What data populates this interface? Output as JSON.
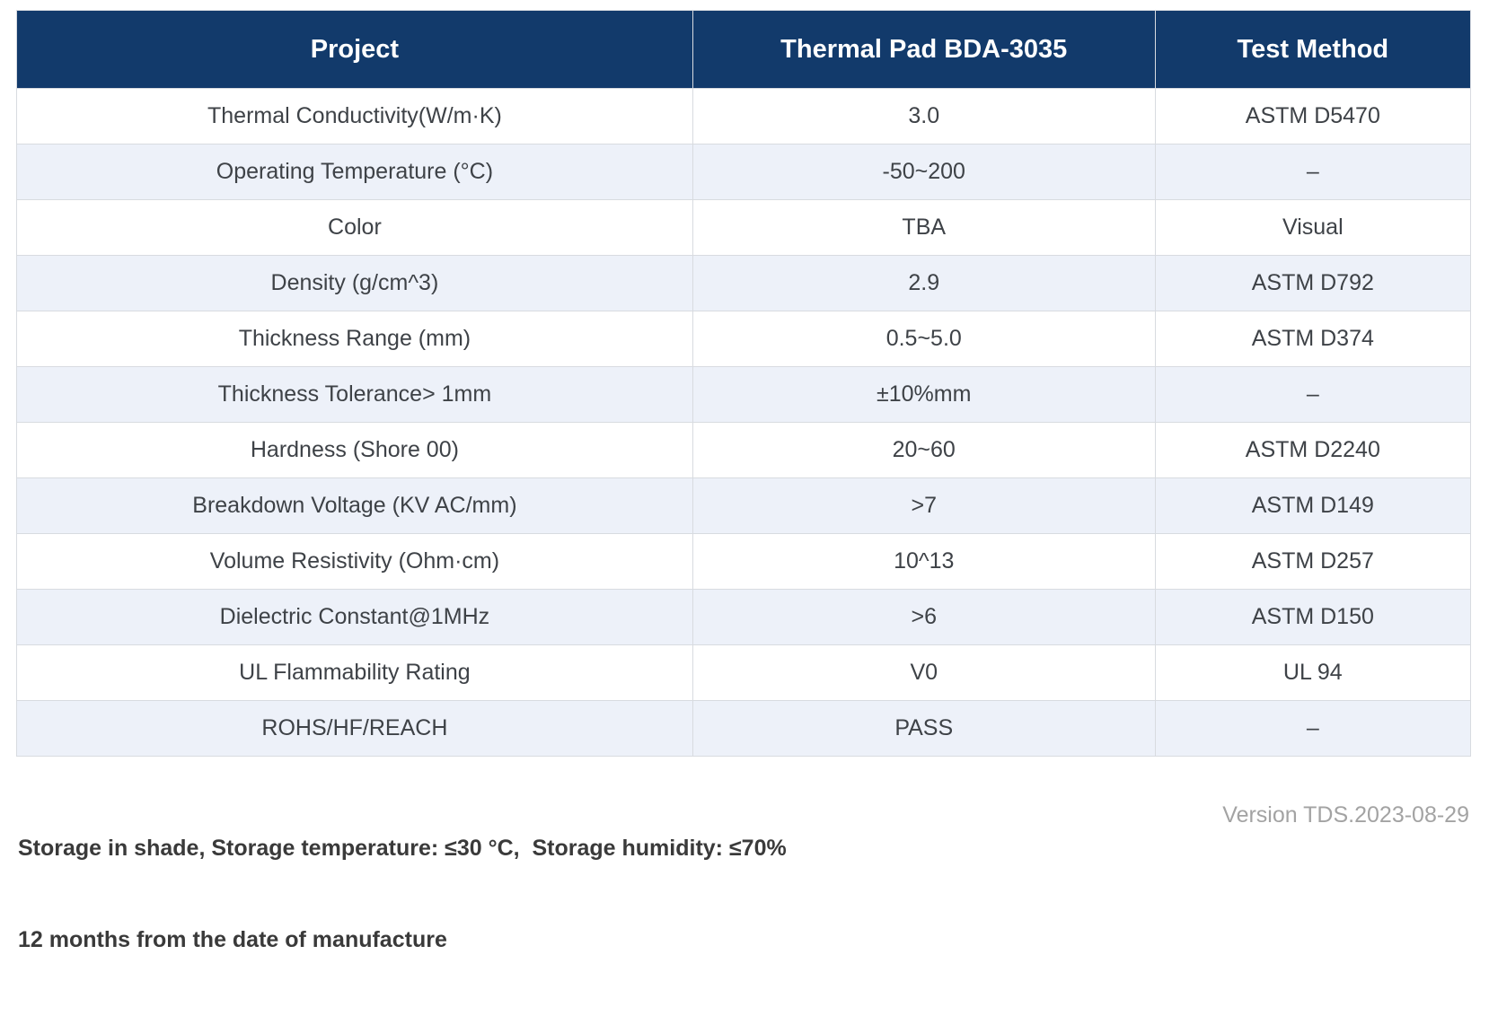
{
  "table": {
    "columns": [
      {
        "label": "Project"
      },
      {
        "label": "Thermal Pad BDA-3035"
      },
      {
        "label": "Test Method"
      }
    ],
    "rows": [
      {
        "project": "Thermal Conductivity(W/m·K)",
        "value": "3.0",
        "method": "ASTM D5470"
      },
      {
        "project": "Operating Temperature (°C)",
        "value": "-50~200",
        "method": "–"
      },
      {
        "project": "Color",
        "value": "TBA",
        "method": "Visual"
      },
      {
        "project": "Density (g/cm^3)",
        "value": "2.9",
        "method": "ASTM D792"
      },
      {
        "project": "Thickness Range (mm)",
        "value": "0.5~5.0",
        "method": "ASTM D374"
      },
      {
        "project": "Thickness Tolerance> 1mm",
        "value": "±10%mm",
        "method": "–"
      },
      {
        "project": "Hardness (Shore 00)",
        "value": "20~60",
        "method": "ASTM D2240"
      },
      {
        "project": "Breakdown Voltage (KV AC/mm)",
        "value": ">7",
        "method": "ASTM D149"
      },
      {
        "project": "Volume Resistivity (Ohm·cm)",
        "value": "10^13",
        "method": "ASTM D257"
      },
      {
        "project": "Dielectric Constant@1MHz",
        "value": ">6",
        "method": "ASTM D150"
      },
      {
        "project": "UL Flammability Rating",
        "value": "V0",
        "method": "UL 94"
      },
      {
        "project": "ROHS/HF/REACH",
        "value": "PASS",
        "method": "–"
      }
    ]
  },
  "footer": {
    "storage_line1": "Storage in shade, Storage temperature: ≤30 °C,  Storage humidity: ≤70%",
    "storage_line2": "12 months from the date of manufacture",
    "version": "Version TDS.2023-08-29"
  },
  "colors": {
    "header_bg": "#123A6B",
    "header_text": "#FFFFFF",
    "row_bg": "#FFFFFF",
    "row_alt_bg": "#EDF1F9",
    "border": "#D8DBE0",
    "cell_text": "#3E4247",
    "footer_text": "#3A3A3A",
    "version_text": "#A3A3A3"
  }
}
